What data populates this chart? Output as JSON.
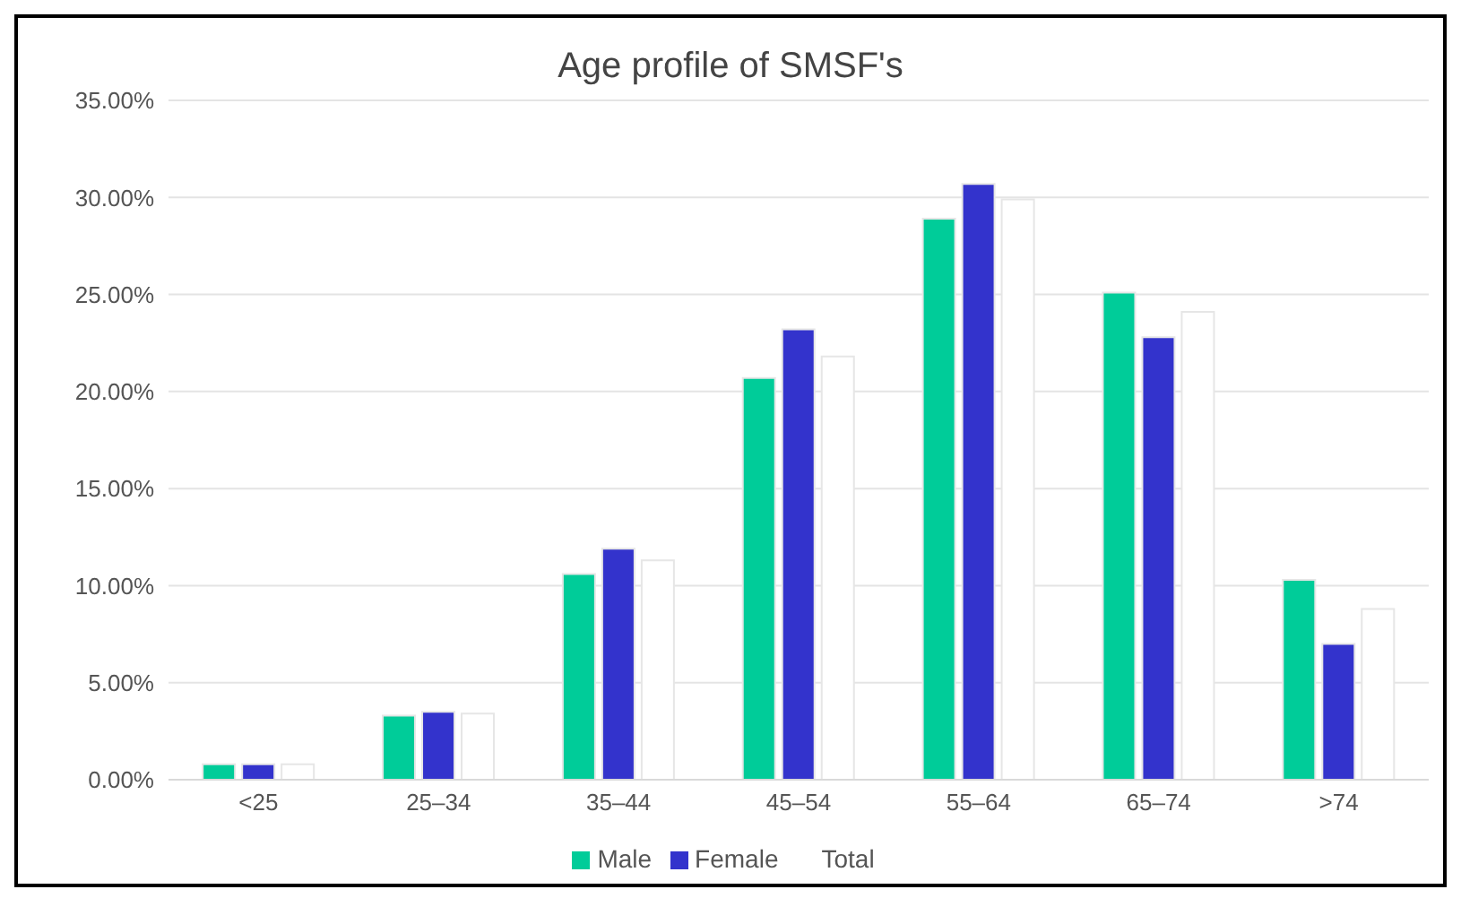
{
  "chart_data": {
    "type": "bar",
    "title": "Age profile of SMSF's",
    "categories": [
      "<25",
      "25–34",
      "35–44",
      "45–54",
      "55–64",
      "65–74",
      ">74"
    ],
    "series": [
      {
        "name": "Male",
        "color": "#00cc99",
        "values": [
          0.8,
          3.3,
          10.6,
          20.7,
          28.9,
          25.1,
          10.3
        ]
      },
      {
        "name": "Female",
        "color": "#3333cc",
        "values": [
          0.8,
          3.5,
          11.9,
          23.2,
          30.7,
          22.8,
          7.0
        ]
      },
      {
        "name": "Total",
        "color": "#ffffff",
        "values": [
          0.8,
          3.4,
          11.3,
          21.8,
          29.9,
          24.1,
          8.8
        ]
      }
    ],
    "ylim": [
      0,
      35
    ],
    "yticks": [
      {
        "value": 0,
        "label": "0.00%"
      },
      {
        "value": 5,
        "label": "5.00%"
      },
      {
        "value": 10,
        "label": "10.00%"
      },
      {
        "value": 15,
        "label": "15.00%"
      },
      {
        "value": 20,
        "label": "20.00%"
      },
      {
        "value": 25,
        "label": "25.00%"
      },
      {
        "value": 30,
        "label": "30.00%"
      },
      {
        "value": 35,
        "label": "35.00%"
      }
    ],
    "grid": "y",
    "legend": "bottom"
  }
}
